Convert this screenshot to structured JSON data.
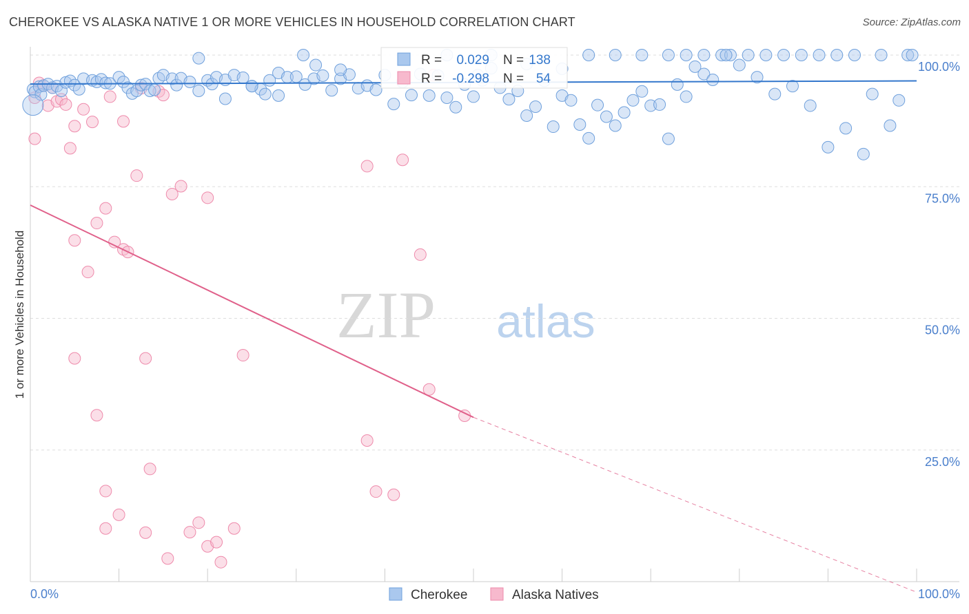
{
  "title": "CHEROKEE VS ALASKA NATIVE 1 OR MORE VEHICLES IN HOUSEHOLD CORRELATION CHART",
  "source": {
    "prefix": "Source:",
    "name": "ZipAtlas.com"
  },
  "watermark": {
    "zip": "ZIP",
    "atlas": "atlas"
  },
  "colors": {
    "cherokee_fill": "#aac8ee",
    "cherokee_stroke": "#6fa0dc",
    "cherokee_line": "#3377cc",
    "alaska_fill": "#f7b9cd",
    "alaska_stroke": "#ee8aab",
    "alaska_line": "#e0608a",
    "tick_label": "#4a7fcc",
    "grid": "#dddddd"
  },
  "chart_data": {
    "type": "scatter",
    "title": "CHEROKEE VS ALASKA NATIVE 1 OR MORE VEHICLES IN HOUSEHOLD CORRELATION CHART",
    "xlabel": "",
    "ylabel": "1 or more Vehicles in Household",
    "xlim": [
      0,
      100
    ],
    "ylim": [
      0,
      100
    ],
    "x_tick_labels": [
      "0.0%",
      "100.0%"
    ],
    "y_tick_labels": [
      "100.0%",
      "75.0%",
      "50.0%",
      "25.0%"
    ],
    "y_tick_values": [
      100,
      75,
      50,
      25
    ],
    "grid": true,
    "legend_position": "bottom-center",
    "stats": [
      {
        "series": "Cherokee",
        "r_label": "R =",
        "r": "0.029",
        "n_label": "N =",
        "n": "138"
      },
      {
        "series": "Alaska Natives",
        "r_label": "R =",
        "r": "-0.298",
        "n_label": "N =",
        "n": "54"
      }
    ],
    "series": [
      {
        "name": "Cherokee",
        "trend": {
          "x0": 0,
          "y0": 94.5,
          "x1": 100,
          "y1": 95.1
        },
        "points": [
          [
            0.3,
            93.5
          ],
          [
            0.5,
            93
          ],
          [
            1,
            94
          ],
          [
            1.2,
            92.5
          ],
          [
            1.5,
            94.2
          ],
          [
            2,
            94.5
          ],
          [
            2.5,
            93.8
          ],
          [
            3,
            94.1
          ],
          [
            3.5,
            93.2
          ],
          [
            4,
            94.8
          ],
          [
            4.5,
            95.1
          ],
          [
            5,
            94.3
          ],
          [
            5.5,
            93.5
          ],
          [
            6,
            95.5
          ],
          [
            7,
            95.2
          ],
          [
            7.5,
            94.9
          ],
          [
            8,
            95.4
          ],
          [
            8.5,
            94.7
          ],
          [
            9,
            94.6
          ],
          [
            10,
            95.8
          ],
          [
            10.5,
            94.9
          ],
          [
            11,
            93.8
          ],
          [
            11.5,
            92.7
          ],
          [
            12,
            93.2
          ],
          [
            12.5,
            94.3
          ],
          [
            13,
            94.5
          ],
          [
            13.5,
            93.2
          ],
          [
            14,
            93.4
          ],
          [
            14.5,
            95.6
          ],
          [
            15,
            96.2
          ],
          [
            16,
            95.5
          ],
          [
            16.5,
            94.3
          ],
          [
            17,
            95.6
          ],
          [
            18,
            94.9
          ],
          [
            19,
            93.2
          ],
          [
            20,
            95.2
          ],
          [
            20.5,
            94.5
          ],
          [
            21,
            95.8
          ],
          [
            22,
            95.3
          ],
          [
            23,
            96.2
          ],
          [
            24,
            95.7
          ],
          [
            25,
            94.1
          ],
          [
            26,
            93.5
          ],
          [
            26.5,
            92.6
          ],
          [
            27,
            95.2
          ],
          [
            28,
            96.6
          ],
          [
            29,
            95.8
          ],
          [
            30,
            95.9
          ],
          [
            31,
            94.4
          ],
          [
            32,
            95.5
          ],
          [
            33,
            96.1
          ],
          [
            34,
            93.3
          ],
          [
            35,
            95.5
          ],
          [
            36,
            96.3
          ],
          [
            37,
            93.7
          ],
          [
            38,
            94.2
          ],
          [
            39,
            93.4
          ],
          [
            40,
            96.2
          ],
          [
            41,
            90.7
          ],
          [
            42,
            94.9
          ],
          [
            43,
            92.4
          ],
          [
            44,
            96.4
          ],
          [
            45,
            92.3
          ],
          [
            46,
            96.1
          ],
          [
            47,
            91.9
          ],
          [
            48,
            90.1
          ],
          [
            49,
            94.4
          ],
          [
            50,
            92.1
          ],
          [
            50.5,
            96.2
          ],
          [
            51,
            95.2
          ],
          [
            52,
            97.5
          ],
          [
            53,
            93.8
          ],
          [
            54,
            91.6
          ],
          [
            55,
            93.2
          ],
          [
            56,
            88.5
          ],
          [
            57,
            90.2
          ],
          [
            58,
            95.1
          ],
          [
            59,
            86.4
          ],
          [
            60,
            92.3
          ],
          [
            61,
            91.4
          ],
          [
            62,
            86.8
          ],
          [
            63,
            84.2
          ],
          [
            64,
            90.5
          ],
          [
            65,
            88.3
          ],
          [
            66,
            86.6
          ],
          [
            67,
            89.1
          ],
          [
            68,
            91.4
          ],
          [
            69,
            93.1
          ],
          [
            70,
            90.4
          ],
          [
            71,
            90.6
          ],
          [
            72,
            84.1
          ],
          [
            73,
            94.4
          ],
          [
            74,
            92.1
          ],
          [
            75,
            97.8
          ],
          [
            76,
            96.4
          ],
          [
            77,
            95.3
          ],
          [
            78,
            100
          ],
          [
            79,
            100
          ],
          [
            80,
            98.1
          ],
          [
            81,
            100
          ],
          [
            82,
            95.8
          ],
          [
            83,
            100
          ],
          [
            84,
            92.6
          ],
          [
            85,
            100
          ],
          [
            86,
            94.1
          ],
          [
            87,
            100
          ],
          [
            88,
            90.4
          ],
          [
            89,
            100
          ],
          [
            90,
            82.5
          ],
          [
            91,
            100
          ],
          [
            92,
            86.1
          ],
          [
            93,
            100
          ],
          [
            94,
            81.2
          ],
          [
            95,
            92.6
          ],
          [
            96,
            100
          ],
          [
            97,
            86.6
          ],
          [
            98,
            91.4
          ],
          [
            99,
            100
          ],
          [
            99.5,
            100
          ],
          [
            30.8,
            100
          ],
          [
            32.2,
            98.1
          ],
          [
            19,
            99.4
          ],
          [
            22,
            91.7
          ],
          [
            25,
            94.1
          ],
          [
            28,
            92.3
          ],
          [
            35,
            97.2
          ],
          [
            47,
            100
          ],
          [
            52,
            100
          ],
          [
            56,
            98.3
          ],
          [
            60,
            97.4
          ],
          [
            63,
            100
          ],
          [
            66,
            100
          ],
          [
            69,
            100
          ],
          [
            72,
            100
          ],
          [
            74,
            100
          ],
          [
            76,
            100
          ],
          [
            78.5,
            100
          ]
        ]
      },
      {
        "name": "Alaska Natives",
        "trend": {
          "x0": 0,
          "y0": 71.5,
          "x1": 50,
          "y1": 31.2,
          "dash_to_x": 100,
          "dash_to_y": -2
        },
        "points": [
          [
            0.5,
            91.9
          ],
          [
            1,
            94.7
          ],
          [
            1.5,
            94.2
          ],
          [
            2,
            90.4
          ],
          [
            2.5,
            93.8
          ],
          [
            3,
            91.2
          ],
          [
            3.5,
            91.6
          ],
          [
            4,
            90.6
          ],
          [
            4.5,
            82.3
          ],
          [
            5,
            86.5
          ],
          [
            6,
            89.7
          ],
          [
            7,
            87.3
          ],
          [
            9,
            92.1
          ],
          [
            10.5,
            87.4
          ],
          [
            12,
            77.1
          ],
          [
            0.5,
            84.1
          ],
          [
            12.5,
            93.7
          ],
          [
            14.5,
            93.1
          ],
          [
            15,
            92.4
          ],
          [
            16,
            73.6
          ],
          [
            17,
            75.1
          ],
          [
            20,
            72.9
          ],
          [
            8.5,
            70.9
          ],
          [
            7.5,
            68.1
          ],
          [
            5,
            64.8
          ],
          [
            9.5,
            64.5
          ],
          [
            10.5,
            63.1
          ],
          [
            11,
            62.6
          ],
          [
            6.5,
            58.8
          ],
          [
            5,
            42.4
          ],
          [
            13,
            42.4
          ],
          [
            24,
            43
          ],
          [
            38,
            26.8
          ],
          [
            7.5,
            31.6
          ],
          [
            13.5,
            21.4
          ],
          [
            8.5,
            17.2
          ],
          [
            39,
            17.1
          ],
          [
            10,
            12.7
          ],
          [
            8.5,
            10.1
          ],
          [
            13,
            9.3
          ],
          [
            18,
            9.4
          ],
          [
            19,
            11.2
          ],
          [
            20,
            6.7
          ],
          [
            21,
            7.5
          ],
          [
            23,
            10.1
          ],
          [
            15.5,
            4.4
          ],
          [
            21.5,
            3.7
          ],
          [
            38,
            78.9
          ],
          [
            42,
            80.1
          ],
          [
            44,
            62.1
          ],
          [
            45,
            36.5
          ],
          [
            41,
            16.5
          ],
          [
            49,
            31.5
          ],
          [
            45.5,
            96.2
          ]
        ]
      }
    ]
  }
}
